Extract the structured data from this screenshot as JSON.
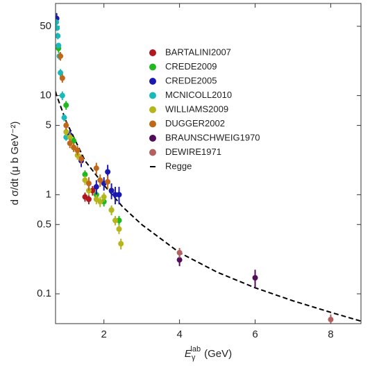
{
  "chart_data": {
    "type": "scatter",
    "x_label": {
      "symbol": "E",
      "sub": "γ",
      "sup": "lab",
      "unit": "(GeV)"
    },
    "y_label": "d σ/dt (μ b GeV⁻²)",
    "log_y": true,
    "xlim": [
      0.72,
      8.8
    ],
    "ylim": [
      0.05,
      85
    ],
    "xticks": [
      2,
      4,
      6,
      8
    ],
    "yticks": [
      0.1,
      0.5,
      1,
      5,
      10,
      50
    ],
    "series": [
      {
        "name": "BARTALINI2007",
        "color": "#b0171f",
        "x": [
          1.5,
          1.6,
          1.7
        ],
        "values": [
          0.95,
          0.9,
          1.1
        ],
        "errors": [
          0.1,
          0.1,
          0.12
        ]
      },
      {
        "name": "CREDE2009",
        "color": "#1fb81f",
        "x": [
          0.8,
          1.0,
          1.2,
          1.5,
          1.8,
          2.0,
          2.2,
          2.4
        ],
        "values": [
          30,
          8,
          3.5,
          1.6,
          1.0,
          0.85,
          0.7,
          0.55
        ],
        "errors": [
          3,
          0.8,
          0.35,
          0.16,
          0.1,
          0.09,
          0.07,
          0.06
        ]
      },
      {
        "name": "CREDE2005",
        "color": "#1a1ab0",
        "x": [
          0.75,
          1.1,
          1.4,
          1.8,
          2.0,
          2.1,
          2.2,
          2.3,
          2.4
        ],
        "values": [
          60,
          4,
          2.2,
          1.2,
          1.3,
          1.7,
          1.1,
          1.0,
          1.0
        ],
        "errors": [
          8,
          0.5,
          0.3,
          0.2,
          0.2,
          0.3,
          0.2,
          0.2,
          0.2
        ]
      },
      {
        "name": "MCNICOLL2010",
        "color": "#1ab8b8",
        "x": [
          0.74,
          0.76,
          0.78,
          0.8,
          0.82,
          0.85,
          0.9,
          0.95,
          1.0
        ],
        "values": [
          55,
          48,
          40,
          32,
          25,
          17,
          10,
          6,
          3.8
        ],
        "errors": [
          4,
          3,
          3,
          2,
          2,
          1.5,
          1,
          0.5,
          0.3
        ]
      },
      {
        "name": "WILLIAMS2009",
        "color": "#b5b51c",
        "x": [
          1.0,
          1.1,
          1.2,
          1.3,
          1.5,
          1.6,
          1.8,
          1.9,
          2.0,
          2.2,
          2.3,
          2.4,
          2.45
        ],
        "values": [
          4.3,
          3.8,
          3.0,
          2.5,
          1.4,
          1.1,
          0.9,
          0.85,
          0.95,
          0.7,
          0.55,
          0.45,
          0.32
        ],
        "errors": [
          0.4,
          0.4,
          0.3,
          0.25,
          0.15,
          0.12,
          0.1,
          0.1,
          0.1,
          0.08,
          0.06,
          0.05,
          0.04
        ]
      },
      {
        "name": "DUGGER2002",
        "color": "#c0681a",
        "x": [
          0.85,
          0.9,
          1.0,
          1.1,
          1.2,
          1.3,
          1.4,
          1.6,
          1.8,
          1.9,
          2.1
        ],
        "values": [
          25,
          15,
          5,
          3.3,
          3.0,
          2.8,
          2.3,
          1.3,
          1.85,
          1.4,
          1.35
        ],
        "errors": [
          2.5,
          1.5,
          0.5,
          0.35,
          0.3,
          0.3,
          0.25,
          0.2,
          0.25,
          0.2,
          0.2
        ]
      },
      {
        "name": "BRAUNSCHWEIG1970",
        "color": "#520c5a",
        "x": [
          4,
          6
        ],
        "values": [
          0.22,
          0.145
        ],
        "errors": [
          0.03,
          0.03
        ]
      },
      {
        "name": "DEWIRE1971",
        "color": "#b3605e",
        "x": [
          4,
          8
        ],
        "values": [
          0.26,
          0.055
        ],
        "errors": [
          0.03,
          0.007
        ]
      }
    ],
    "curve": {
      "name": "Regge",
      "color": "#000000",
      "x": [
        0.72,
        0.75,
        1.0,
        1.5,
        2.0,
        2.5,
        3.0,
        4.0,
        5.0,
        6.0,
        7.0,
        8.0,
        8.8
      ],
      "values": [
        11,
        10,
        5.5,
        2.2,
        1.25,
        0.75,
        0.5,
        0.26,
        0.165,
        0.115,
        0.085,
        0.065,
        0.053
      ]
    }
  }
}
